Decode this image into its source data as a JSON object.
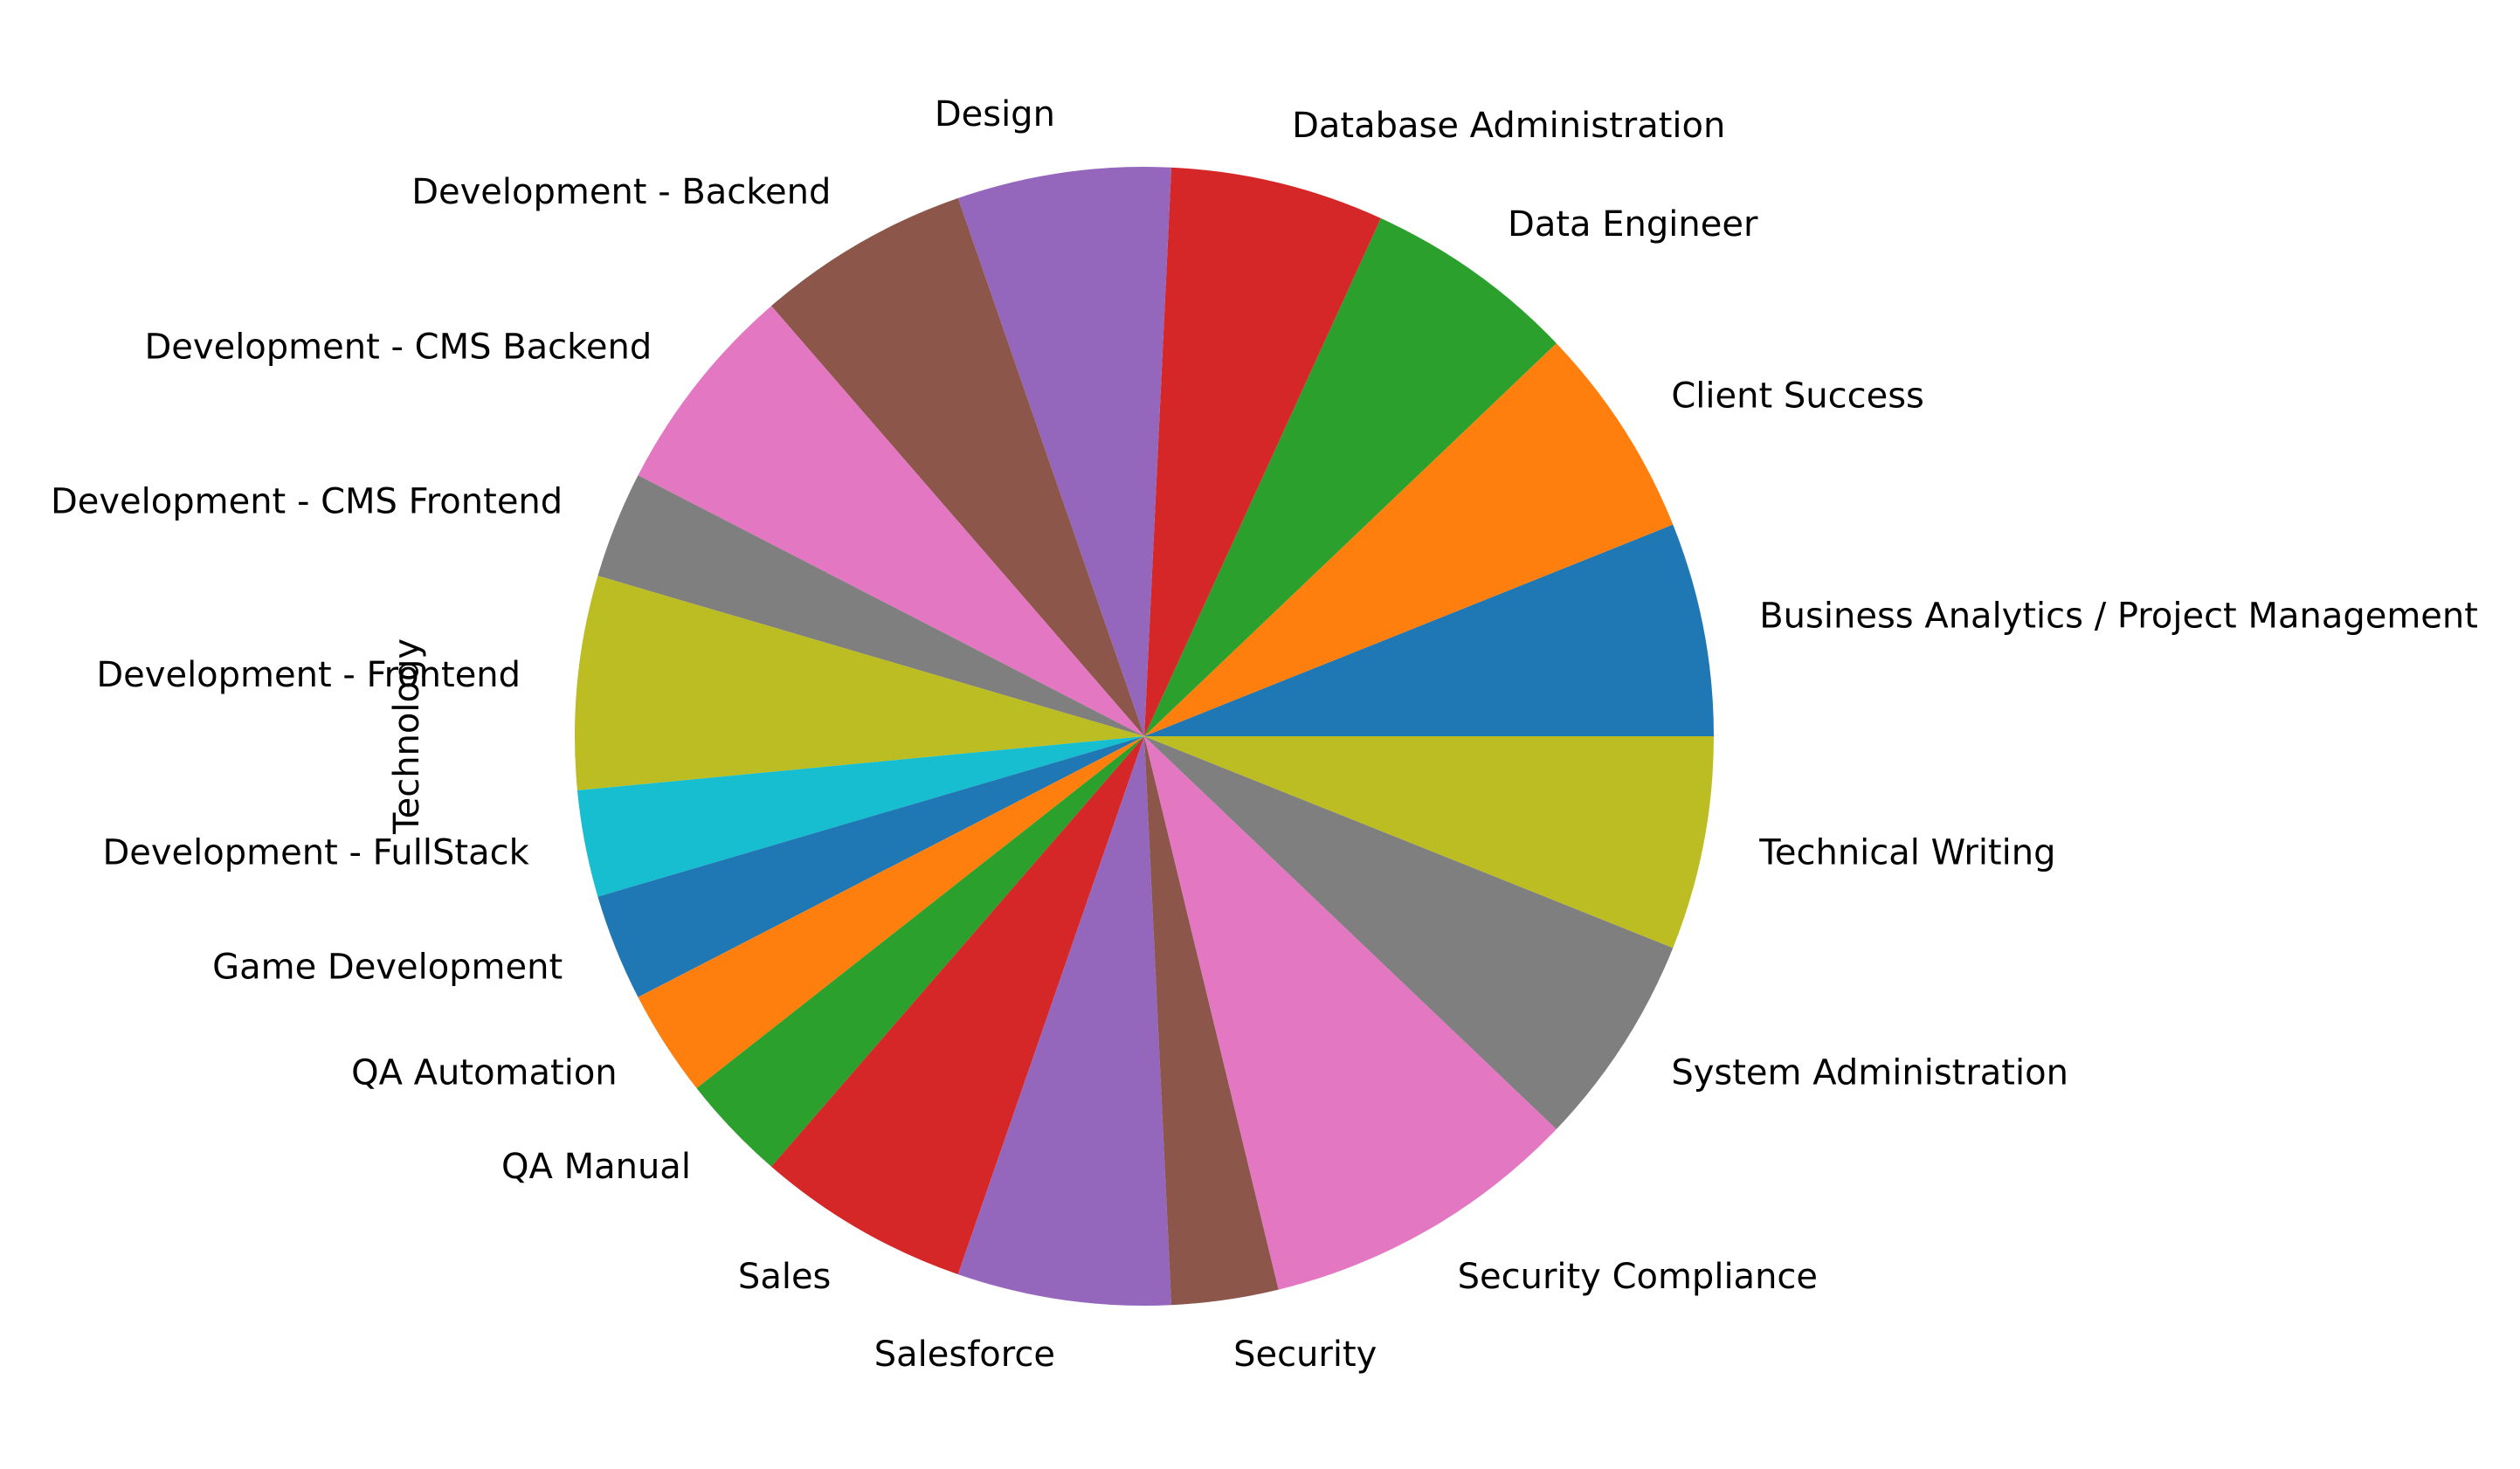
{
  "chart_data": {
    "type": "pie",
    "title": "",
    "ylabel": "Technology",
    "start_angle": 0,
    "direction": "counterclockwise",
    "slices": [
      {
        "label": "Business Analytics / Project Management",
        "value": 2,
        "color": "#1f77b4"
      },
      {
        "label": "Client Success",
        "value": 2,
        "color": "#ff7f0e"
      },
      {
        "label": "Data Engineer",
        "value": 2,
        "color": "#2ca02c"
      },
      {
        "label": "Database Administration",
        "value": 2,
        "color": "#d62728"
      },
      {
        "label": "Design",
        "value": 2,
        "color": "#9467bd"
      },
      {
        "label": "Development - Backend",
        "value": 2,
        "color": "#8c564b"
      },
      {
        "label": "Development - CMS Backend",
        "value": 2,
        "color": "#e377c2"
      },
      {
        "label": "Development - CMS Frontend",
        "value": 1,
        "color": "#7f7f7f"
      },
      {
        "label": "Development - Frontend",
        "value": 2,
        "color": "#bcbd22"
      },
      {
        "label": "Development - FullStack",
        "value": 1,
        "color": "#17becf"
      },
      {
        "label": "Game Development",
        "value": 1,
        "color": "#1f77b4"
      },
      {
        "label": "QA Automation",
        "value": 1,
        "color": "#ff7f0e"
      },
      {
        "label": "QA Manual",
        "value": 1,
        "color": "#2ca02c"
      },
      {
        "label": "Sales",
        "value": 2,
        "color": "#d62728"
      },
      {
        "label": "Salesforce",
        "value": 2,
        "color": "#9467bd"
      },
      {
        "label": "Security",
        "value": 1,
        "color": "#8c564b"
      },
      {
        "label": "Security Compliance",
        "value": 3,
        "color": "#e377c2"
      },
      {
        "label": "System Administration",
        "value": 2,
        "color": "#7f7f7f"
      },
      {
        "label": "Technical Writing",
        "value": 2,
        "color": "#bcbd22"
      }
    ]
  }
}
